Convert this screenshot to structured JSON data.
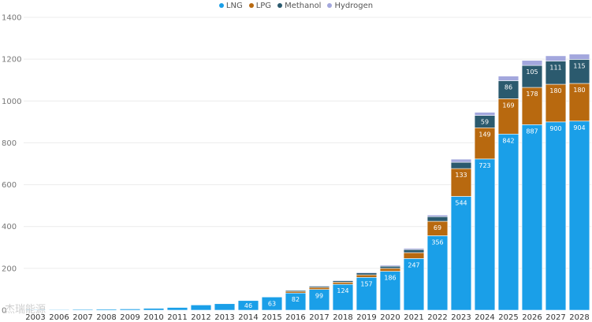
{
  "chart_data": {
    "type": "bar",
    "stacked": true,
    "categories": [
      "2003",
      "2006",
      "2007",
      "2008",
      "2009",
      "2010",
      "2011",
      "2012",
      "2013",
      "2014",
      "2015",
      "2016",
      "2017",
      "2018",
      "2019",
      "2020",
      "2021",
      "2022",
      "2023",
      "2024",
      "2025",
      "2026",
      "2027",
      "2028"
    ],
    "series": [
      {
        "name": "LNG",
        "color": "#1a9fe8",
        "values": [
          3,
          3,
          4,
          5,
          6,
          9,
          13,
          25,
          31,
          46,
          63,
          82,
          99,
          124,
          157,
          186,
          247,
          356,
          544,
          723,
          842,
          887,
          900,
          904
        ],
        "labels": [
          "",
          "",
          "",
          "",
          "",
          "",
          "",
          "",
          "",
          "46",
          "63",
          "82",
          "99",
          "124",
          "157",
          "186",
          "247",
          "356",
          "544",
          "723",
          "842",
          "887",
          "900",
          "904"
        ]
      },
      {
        "name": "LPG",
        "color": "#b8690f",
        "values": [
          0,
          0,
          0,
          0,
          0,
          0,
          0,
          0,
          0,
          0,
          0,
          8,
          10,
          10,
          12,
          14,
          28,
          69,
          133,
          149,
          169,
          178,
          180,
          180
        ],
        "labels": [
          "",
          "",
          "",
          "",
          "",
          "",
          "",
          "",
          "",
          "",
          "",
          "",
          "",
          "",
          "",
          "",
          "",
          "69",
          "133",
          "149",
          "169",
          "178",
          "180",
          "180"
        ]
      },
      {
        "name": "Methanol",
        "color": "#2b5a6e",
        "values": [
          0,
          0,
          0,
          0,
          0,
          0,
          0,
          0,
          0,
          0,
          0,
          5,
          6,
          7,
          9,
          10,
          15,
          22,
          30,
          59,
          86,
          105,
          111,
          115
        ],
        "labels": [
          "",
          "",
          "",
          "",
          "",
          "",
          "",
          "",
          "",
          "",
          "",
          "",
          "",
          "",
          "",
          "",
          "",
          "",
          "",
          "59",
          "86",
          "105",
          "111",
          "115"
        ]
      },
      {
        "name": "Hydrogen",
        "color": "#a3a7dd",
        "values": [
          0,
          0,
          0,
          0,
          0,
          0,
          0,
          0,
          0,
          0,
          0,
          2,
          3,
          3,
          4,
          5,
          6,
          8,
          15,
          15,
          22,
          24,
          25,
          25
        ],
        "labels": [
          "",
          "",
          "",
          "",
          "",
          "",
          "",
          "",
          "",
          "",
          "",
          "",
          "",
          "",
          "",
          "",
          "",
          "",
          "",
          "",
          "",
          "",
          "",
          ""
        ]
      }
    ],
    "ylim": [
      0,
      1400
    ],
    "yticks": [
      "0",
      "200",
      "400",
      "600",
      "800",
      "1000",
      "1200",
      "1400"
    ],
    "legend_position": "top-center",
    "grid": true
  },
  "watermark": "杰瑞能源"
}
